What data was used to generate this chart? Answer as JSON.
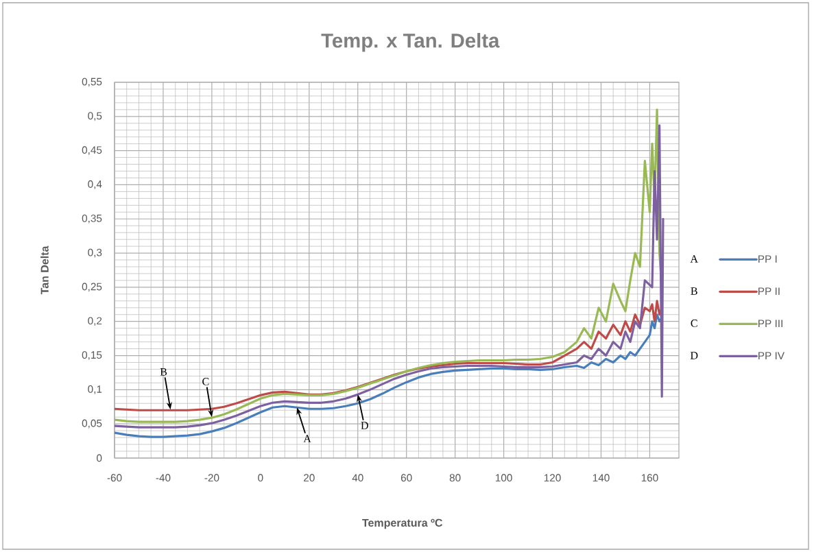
{
  "chart_data": {
    "type": "line",
    "title": "Temp. x Tan. Delta",
    "xlabel": "Temperatura ºC",
    "ylabel": "Tan Delta",
    "xlim": [
      -60,
      172
    ],
    "xticks": [
      -60,
      -40,
      -20,
      0,
      20,
      40,
      60,
      80,
      100,
      120,
      140,
      160
    ],
    "ylim": [
      0,
      0.55
    ],
    "yticks": [
      0,
      {
        "value": 0.05,
        "label": "0,05"
      },
      {
        "value": 0.1,
        "label": "0,1"
      },
      {
        "value": 0.15,
        "label": "0,15"
      },
      {
        "value": 0.2,
        "label": "0,2"
      },
      {
        "value": 0.25,
        "label": "0,25"
      },
      {
        "value": 0.3,
        "label": "0,3"
      },
      {
        "value": 0.35,
        "label": "0,35"
      },
      {
        "value": 0.4,
        "label": "0,4"
      },
      {
        "value": 0.45,
        "label": "0,45"
      },
      {
        "value": 0.5,
        "label": "0,5"
      },
      {
        "value": 0.55,
        "label": "0,55"
      }
    ],
    "grid": true,
    "legend": "right",
    "series": [
      {
        "name": "PP I",
        "color": "#4a7ebb",
        "x": [
          -60,
          -55,
          -50,
          -45,
          -40,
          -35,
          -30,
          -25,
          -20,
          -15,
          -10,
          -5,
          0,
          5,
          10,
          15,
          20,
          25,
          30,
          35,
          40,
          45,
          50,
          55,
          60,
          65,
          70,
          75,
          80,
          85,
          90,
          95,
          100,
          105,
          110,
          115,
          120,
          125,
          130,
          133,
          136,
          139,
          142,
          145,
          148,
          150,
          152,
          154,
          156,
          158,
          160,
          161,
          162,
          163,
          164,
          165
        ],
        "values": [
          0.037,
          0.034,
          0.032,
          0.031,
          0.031,
          0.032,
          0.033,
          0.035,
          0.039,
          0.044,
          0.051,
          0.059,
          0.067,
          0.074,
          0.076,
          0.074,
          0.072,
          0.072,
          0.073,
          0.076,
          0.08,
          0.086,
          0.094,
          0.103,
          0.111,
          0.118,
          0.123,
          0.126,
          0.128,
          0.129,
          0.13,
          0.131,
          0.131,
          0.13,
          0.13,
          0.129,
          0.13,
          0.133,
          0.135,
          0.132,
          0.14,
          0.136,
          0.145,
          0.14,
          0.15,
          0.145,
          0.155,
          0.15,
          0.16,
          0.17,
          0.18,
          0.2,
          0.19,
          0.21,
          0.2,
          0.205
        ]
      },
      {
        "name": "PP II",
        "color": "#be4b48",
        "x": [
          -60,
          -55,
          -50,
          -45,
          -40,
          -35,
          -30,
          -25,
          -20,
          -15,
          -10,
          -5,
          0,
          5,
          10,
          15,
          20,
          25,
          30,
          35,
          40,
          45,
          50,
          55,
          60,
          65,
          70,
          75,
          80,
          85,
          90,
          95,
          100,
          105,
          110,
          115,
          120,
          125,
          130,
          133,
          136,
          139,
          142,
          145,
          148,
          150,
          152,
          154,
          156,
          158,
          160,
          161,
          162,
          163,
          164,
          165
        ],
        "values": [
          0.072,
          0.071,
          0.07,
          0.07,
          0.07,
          0.07,
          0.07,
          0.071,
          0.072,
          0.075,
          0.08,
          0.086,
          0.092,
          0.096,
          0.097,
          0.095,
          0.093,
          0.093,
          0.095,
          0.099,
          0.104,
          0.11,
          0.116,
          0.122,
          0.127,
          0.131,
          0.134,
          0.136,
          0.138,
          0.139,
          0.139,
          0.139,
          0.139,
          0.138,
          0.137,
          0.137,
          0.14,
          0.15,
          0.16,
          0.17,
          0.16,
          0.185,
          0.175,
          0.195,
          0.18,
          0.2,
          0.185,
          0.21,
          0.195,
          0.22,
          0.215,
          0.225,
          0.2,
          0.23,
          0.21,
          0.22
        ]
      },
      {
        "name": "PP III",
        "color": "#98b954",
        "x": [
          -60,
          -55,
          -50,
          -45,
          -40,
          -35,
          -30,
          -25,
          -20,
          -15,
          -10,
          -5,
          0,
          5,
          10,
          15,
          20,
          25,
          30,
          35,
          40,
          45,
          50,
          55,
          60,
          65,
          70,
          75,
          80,
          85,
          90,
          95,
          100,
          105,
          110,
          115,
          120,
          125,
          130,
          133,
          136,
          139,
          142,
          145,
          148,
          150,
          152,
          154,
          156,
          158,
          160,
          161,
          162,
          163,
          164,
          165
        ],
        "values": [
          0.056,
          0.054,
          0.053,
          0.053,
          0.053,
          0.053,
          0.054,
          0.056,
          0.059,
          0.064,
          0.071,
          0.079,
          0.087,
          0.092,
          0.094,
          0.093,
          0.092,
          0.092,
          0.094,
          0.098,
          0.103,
          0.109,
          0.115,
          0.121,
          0.127,
          0.132,
          0.136,
          0.139,
          0.141,
          0.142,
          0.143,
          0.143,
          0.143,
          0.144,
          0.144,
          0.145,
          0.148,
          0.155,
          0.17,
          0.19,
          0.175,
          0.22,
          0.2,
          0.255,
          0.23,
          0.215,
          0.26,
          0.3,
          0.28,
          0.435,
          0.36,
          0.46,
          0.38,
          0.51,
          0.3,
          0.25
        ]
      },
      {
        "name": "PP IV",
        "color": "#7d60a0",
        "x": [
          -60,
          -55,
          -50,
          -45,
          -40,
          -35,
          -30,
          -25,
          -20,
          -15,
          -10,
          -5,
          0,
          5,
          10,
          15,
          20,
          25,
          30,
          35,
          40,
          45,
          50,
          55,
          60,
          65,
          70,
          75,
          80,
          85,
          90,
          95,
          100,
          105,
          110,
          115,
          120,
          125,
          130,
          133,
          136,
          139,
          142,
          145,
          148,
          150,
          152,
          154,
          156,
          158,
          161,
          162,
          163,
          164,
          165,
          165.5
        ],
        "values": [
          0.047,
          0.046,
          0.045,
          0.045,
          0.045,
          0.045,
          0.046,
          0.048,
          0.051,
          0.056,
          0.062,
          0.069,
          0.076,
          0.081,
          0.083,
          0.082,
          0.081,
          0.081,
          0.083,
          0.087,
          0.093,
          0.1,
          0.108,
          0.116,
          0.122,
          0.127,
          0.131,
          0.133,
          0.134,
          0.135,
          0.135,
          0.135,
          0.134,
          0.133,
          0.133,
          0.133,
          0.134,
          0.137,
          0.14,
          0.15,
          0.145,
          0.16,
          0.15,
          0.17,
          0.16,
          0.185,
          0.17,
          0.2,
          0.19,
          0.26,
          0.25,
          0.42,
          0.32,
          0.487,
          0.09,
          0.35
        ]
      }
    ],
    "annotations": [
      {
        "text": "B",
        "x": -37,
        "y": 0.071
      },
      {
        "text": "C",
        "x": -20,
        "y": 0.06
      },
      {
        "text": "A",
        "x": 15,
        "y": 0.074
      },
      {
        "text": "D",
        "x": 40,
        "y": 0.093
      },
      "A",
      "B",
      "C",
      "D"
    ]
  }
}
